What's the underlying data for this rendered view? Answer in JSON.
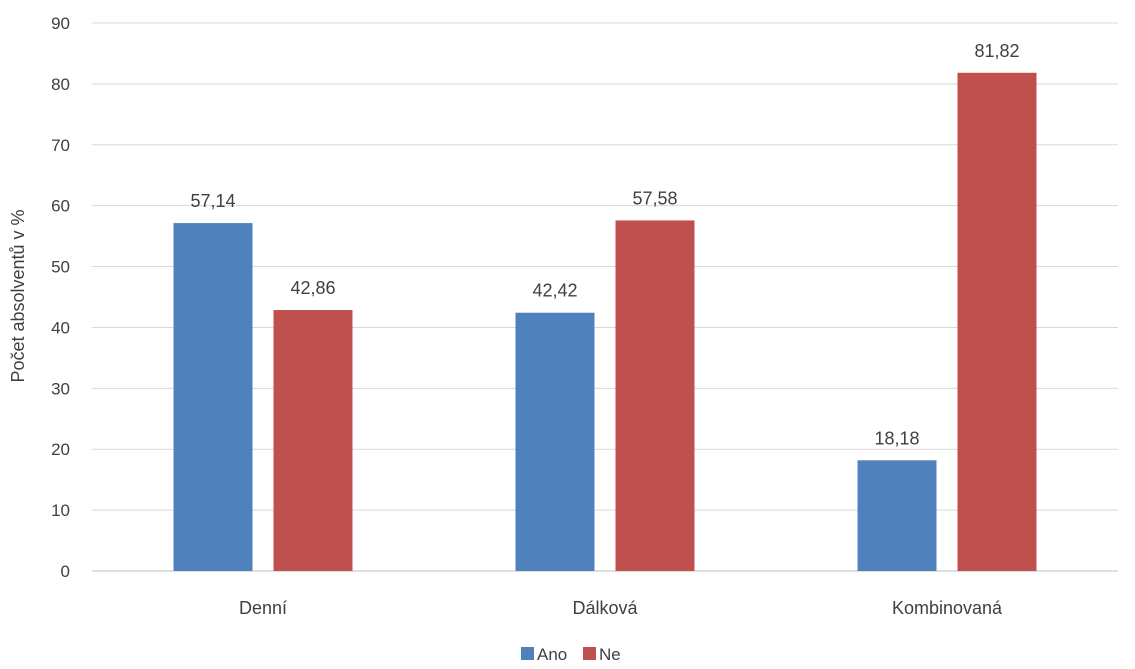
{
  "chart_data": {
    "type": "bar",
    "categories": [
      "Denní",
      "Dálková",
      "Kombinovaná"
    ],
    "series": [
      {
        "name": "Ano",
        "values": [
          57.14,
          42.42,
          18.18
        ],
        "labels": [
          "57,14",
          "42,42",
          "18,18"
        ],
        "color": "#4F81BD"
      },
      {
        "name": "Ne",
        "values": [
          42.86,
          57.58,
          81.82
        ],
        "labels": [
          "42,86",
          "57,58",
          "81,82"
        ],
        "color": "#C0504D"
      }
    ],
    "title": "",
    "xlabel": "",
    "ylabel": "Počet absolventů v %",
    "ylim": [
      0,
      90
    ],
    "yticks": [
      0,
      10,
      20,
      30,
      40,
      50,
      60,
      70,
      80,
      90
    ],
    "grid": true,
    "legend_position": "bottom"
  }
}
